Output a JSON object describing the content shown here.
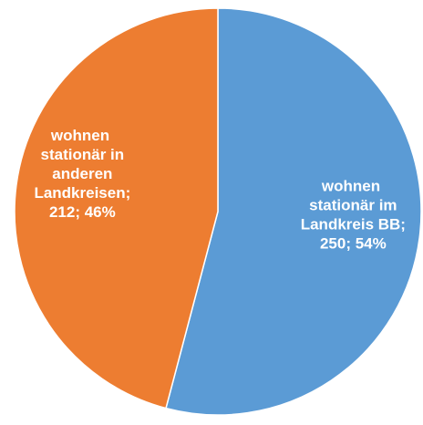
{
  "chart_data": {
    "type": "pie",
    "values": [
      250,
      212
    ],
    "value_labels": [
      "wohnen stationär im Landkreis BB; 250; 54%",
      "wohnen stationär in anderen Landkreisen; 212; 46%"
    ],
    "colors": [
      "#5b9bd5",
      "#ed7d31"
    ]
  }
}
